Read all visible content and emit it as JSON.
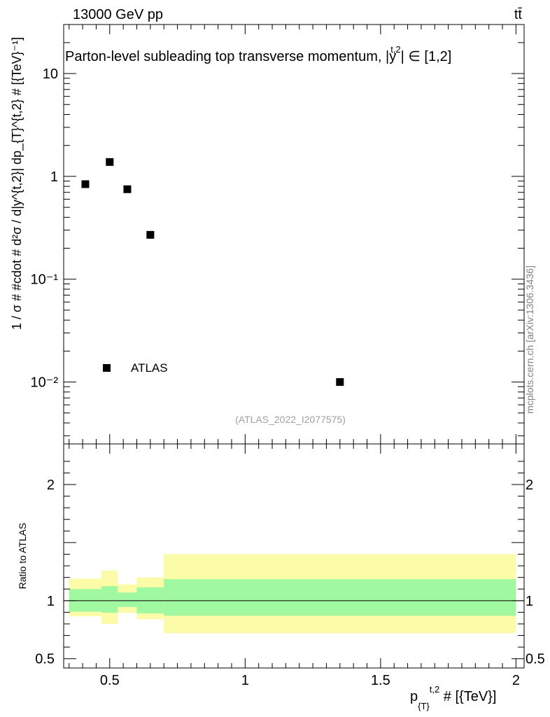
{
  "header": {
    "energy_label": "13000 GeV pp",
    "process_label": "tt̄"
  },
  "chart_data": [
    {
      "type": "scatter",
      "title": "Parton-level subleading top transverse momentum, |y",
      "title_sup": "t,2",
      "title_suffix": "| ∈ [1,2]",
      "xlabel": "p",
      "xlabel_sub": "{T}",
      "xlabel_sup": "t,2",
      "xlabel_suffix": " # [{TeV}]",
      "ylabel": "1 / σ # #cdot # d²σ / d|y^{t,2}| dp_{T}^{t,2} # [{TeV}⁻¹]",
      "yscale": "log",
      "ylim": [
        0.0025,
        30
      ],
      "xlim": [
        0.33,
        2.03
      ],
      "y_ticks": [
        "10",
        "1",
        "10⁻¹",
        "10⁻²"
      ],
      "series": [
        {
          "name": "ATLAS",
          "x": [
            0.41,
            0.5,
            0.565,
            0.65,
            1.35
          ],
          "y": [
            0.84,
            1.38,
            0.75,
            0.27,
            0.01
          ]
        }
      ],
      "legend": "bottom-left",
      "watermark": "(ATLAS_2022_I2077575)"
    },
    {
      "type": "area",
      "ylabel": "Ratio to ATLAS",
      "ylim": [
        0.42,
        2.35
      ],
      "xlim": [
        0.33,
        2.03
      ],
      "y_ticks": [
        "2",
        "1",
        "0.5"
      ],
      "x_ticks": [
        "0.5",
        "1",
        "1.5",
        "2"
      ],
      "reference_line": 1.0,
      "bins": [
        {
          "x_low": 0.35,
          "x_high": 0.47,
          "inner_low": 0.905,
          "inner_high": 1.1,
          "outer_low": 0.865,
          "outer_high": 1.19
        },
        {
          "x_low": 0.47,
          "x_high": 0.53,
          "inner_low": 0.895,
          "inner_high": 1.125,
          "outer_low": 0.8,
          "outer_high": 1.26
        },
        {
          "x_low": 0.53,
          "x_high": 0.6,
          "inner_low": 0.945,
          "inner_high": 1.07,
          "outer_low": 0.895,
          "outer_high": 1.14
        },
        {
          "x_low": 0.6,
          "x_high": 0.7,
          "inner_low": 0.89,
          "inner_high": 1.115,
          "outer_low": 0.84,
          "outer_high": 1.2
        },
        {
          "x_low": 0.7,
          "x_high": 2.0,
          "inner_low": 0.87,
          "inner_high": 1.185,
          "outer_low": 0.72,
          "outer_high": 1.4
        }
      ],
      "colors": {
        "inner": "#a0f8a0",
        "outer": "#fcfca8"
      }
    }
  ],
  "side_label": "mcplots.cern.ch [arXiv:1306.3436]"
}
